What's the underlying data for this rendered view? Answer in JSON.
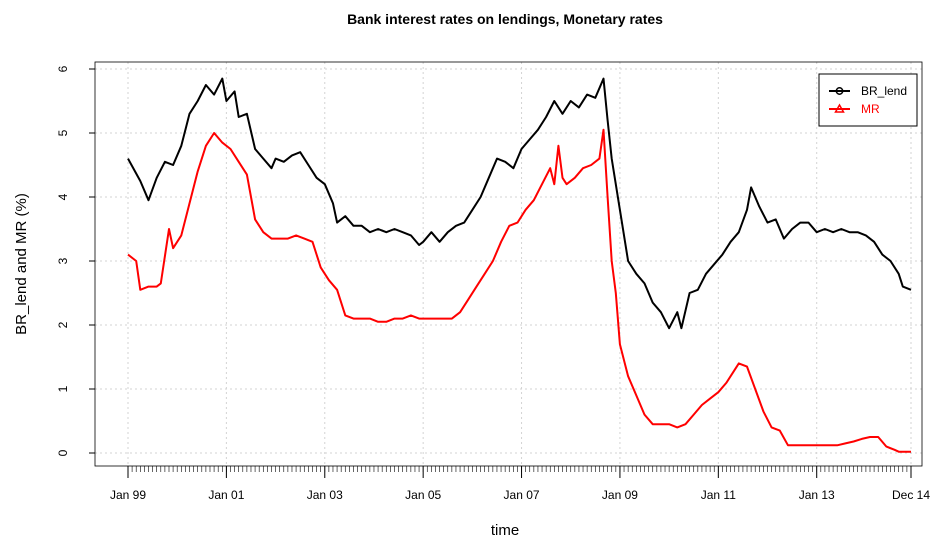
{
  "chart_data": {
    "type": "line",
    "title": "Bank interest rates on lendings, Monetary rates",
    "xlabel": "time",
    "ylabel": "BR_lend and MR (%)",
    "xlim": [
      "1999-01",
      "2014-12"
    ],
    "ylim": [
      0,
      6
    ],
    "yticks": [
      0,
      1,
      2,
      3,
      4,
      5,
      6
    ],
    "x_tick_labels": [
      "Jan 99",
      "Jan 01",
      "Jan 03",
      "Jan 05",
      "Jan 07",
      "Jan 09",
      "Jan 11",
      "Jan 13",
      "Dec 14"
    ],
    "x_tick_dates": [
      "1999-01",
      "2001-01",
      "2003-01",
      "2005-01",
      "2007-01",
      "2009-01",
      "2011-01",
      "2013-01",
      "2014-12"
    ],
    "minor_ticks": "monthly",
    "grid": true,
    "legend_position": "top-right",
    "series": [
      {
        "name": "BR_lend",
        "color": "#000000",
        "marker": "circle",
        "points": [
          [
            "1999-01",
            4.6
          ],
          [
            "1999-04",
            4.25
          ],
          [
            "1999-06",
            3.95
          ],
          [
            "1999-08",
            4.3
          ],
          [
            "1999-10",
            4.55
          ],
          [
            "1999-12",
            4.5
          ],
          [
            "2000-02",
            4.8
          ],
          [
            "2000-04",
            5.3
          ],
          [
            "2000-06",
            5.5
          ],
          [
            "2000-08",
            5.75
          ],
          [
            "2000-10",
            5.6
          ],
          [
            "2000-12",
            5.85
          ],
          [
            "2001-01",
            5.5
          ],
          [
            "2001-03",
            5.65
          ],
          [
            "2001-04",
            5.25
          ],
          [
            "2001-06",
            5.3
          ],
          [
            "2001-08",
            4.75
          ],
          [
            "2001-10",
            4.6
          ],
          [
            "2001-12",
            4.45
          ],
          [
            "2002-01",
            4.6
          ],
          [
            "2002-03",
            4.55
          ],
          [
            "2002-05",
            4.65
          ],
          [
            "2002-07",
            4.7
          ],
          [
            "2002-09",
            4.5
          ],
          [
            "2002-11",
            4.3
          ],
          [
            "2003-01",
            4.2
          ],
          [
            "2003-03",
            3.9
          ],
          [
            "2003-04",
            3.6
          ],
          [
            "2003-06",
            3.7
          ],
          [
            "2003-08",
            3.55
          ],
          [
            "2003-10",
            3.55
          ],
          [
            "2003-12",
            3.45
          ],
          [
            "2004-02",
            3.5
          ],
          [
            "2004-04",
            3.45
          ],
          [
            "2004-06",
            3.5
          ],
          [
            "2004-08",
            3.45
          ],
          [
            "2004-10",
            3.4
          ],
          [
            "2004-12",
            3.25
          ],
          [
            "2005-01",
            3.3
          ],
          [
            "2005-03",
            3.45
          ],
          [
            "2005-05",
            3.3
          ],
          [
            "2005-07",
            3.45
          ],
          [
            "2005-09",
            3.55
          ],
          [
            "2005-11",
            3.6
          ],
          [
            "2006-01",
            3.8
          ],
          [
            "2006-03",
            4.0
          ],
          [
            "2006-05",
            4.3
          ],
          [
            "2006-07",
            4.6
          ],
          [
            "2006-09",
            4.55
          ],
          [
            "2006-11",
            4.45
          ],
          [
            "2007-01",
            4.75
          ],
          [
            "2007-03",
            4.9
          ],
          [
            "2007-05",
            5.05
          ],
          [
            "2007-07",
            5.25
          ],
          [
            "2007-09",
            5.5
          ],
          [
            "2007-11",
            5.3
          ],
          [
            "2008-01",
            5.5
          ],
          [
            "2008-03",
            5.4
          ],
          [
            "2008-05",
            5.6
          ],
          [
            "2008-07",
            5.55
          ],
          [
            "2008-09",
            5.85
          ],
          [
            "2008-10",
            5.2
          ],
          [
            "2008-11",
            4.6
          ],
          [
            "2009-01",
            3.8
          ],
          [
            "2009-03",
            3.0
          ],
          [
            "2009-05",
            2.8
          ],
          [
            "2009-07",
            2.65
          ],
          [
            "2009-09",
            2.35
          ],
          [
            "2009-11",
            2.2
          ],
          [
            "2010-01",
            1.95
          ],
          [
            "2010-03",
            2.2
          ],
          [
            "2010-04",
            1.95
          ],
          [
            "2010-06",
            2.5
          ],
          [
            "2010-08",
            2.55
          ],
          [
            "2010-10",
            2.8
          ],
          [
            "2010-12",
            2.95
          ],
          [
            "2011-02",
            3.1
          ],
          [
            "2011-04",
            3.3
          ],
          [
            "2011-06",
            3.45
          ],
          [
            "2011-08",
            3.8
          ],
          [
            "2011-09",
            4.15
          ],
          [
            "2011-11",
            3.85
          ],
          [
            "2012-01",
            3.6
          ],
          [
            "2012-03",
            3.65
          ],
          [
            "2012-05",
            3.35
          ],
          [
            "2012-07",
            3.5
          ],
          [
            "2012-09",
            3.6
          ],
          [
            "2012-11",
            3.6
          ],
          [
            "2013-01",
            3.45
          ],
          [
            "2013-03",
            3.5
          ],
          [
            "2013-05",
            3.45
          ],
          [
            "2013-07",
            3.5
          ],
          [
            "2013-09",
            3.45
          ],
          [
            "2013-11",
            3.45
          ],
          [
            "2014-01",
            3.4
          ],
          [
            "2014-03",
            3.3
          ],
          [
            "2014-05",
            3.1
          ],
          [
            "2014-07",
            3.0
          ],
          [
            "2014-09",
            2.8
          ],
          [
            "2014-10",
            2.6
          ],
          [
            "2014-12",
            2.55
          ]
        ]
      },
      {
        "name": "MR",
        "color": "#ff0000",
        "marker": "triangle",
        "points": [
          [
            "1999-01",
            3.1
          ],
          [
            "1999-03",
            3.0
          ],
          [
            "1999-04",
            2.55
          ],
          [
            "1999-06",
            2.6
          ],
          [
            "1999-08",
            2.6
          ],
          [
            "1999-09",
            2.65
          ],
          [
            "1999-11",
            3.5
          ],
          [
            "1999-12",
            3.2
          ],
          [
            "2000-02",
            3.4
          ],
          [
            "2000-04",
            3.9
          ],
          [
            "2000-06",
            4.4
          ],
          [
            "2000-08",
            4.8
          ],
          [
            "2000-10",
            5.0
          ],
          [
            "2000-12",
            4.85
          ],
          [
            "2001-02",
            4.75
          ],
          [
            "2001-04",
            4.55
          ],
          [
            "2001-06",
            4.35
          ],
          [
            "2001-08",
            3.65
          ],
          [
            "2001-10",
            3.45
          ],
          [
            "2001-12",
            3.35
          ],
          [
            "2002-02",
            3.35
          ],
          [
            "2002-04",
            3.35
          ],
          [
            "2002-06",
            3.4
          ],
          [
            "2002-08",
            3.35
          ],
          [
            "2002-10",
            3.3
          ],
          [
            "2002-12",
            2.9
          ],
          [
            "2003-02",
            2.7
          ],
          [
            "2003-04",
            2.55
          ],
          [
            "2003-06",
            2.15
          ],
          [
            "2003-08",
            2.1
          ],
          [
            "2003-10",
            2.1
          ],
          [
            "2003-12",
            2.1
          ],
          [
            "2004-02",
            2.05
          ],
          [
            "2004-04",
            2.05
          ],
          [
            "2004-06",
            2.1
          ],
          [
            "2004-08",
            2.1
          ],
          [
            "2004-10",
            2.15
          ],
          [
            "2004-12",
            2.1
          ],
          [
            "2005-02",
            2.1
          ],
          [
            "2005-04",
            2.1
          ],
          [
            "2005-06",
            2.1
          ],
          [
            "2005-08",
            2.1
          ],
          [
            "2005-10",
            2.2
          ],
          [
            "2005-12",
            2.4
          ],
          [
            "2006-02",
            2.6
          ],
          [
            "2006-04",
            2.8
          ],
          [
            "2006-06",
            3.0
          ],
          [
            "2006-08",
            3.3
          ],
          [
            "2006-10",
            3.55
          ],
          [
            "2006-12",
            3.6
          ],
          [
            "2007-02",
            3.8
          ],
          [
            "2007-04",
            3.95
          ],
          [
            "2007-06",
            4.2
          ],
          [
            "2007-08",
            4.45
          ],
          [
            "2007-09",
            4.2
          ],
          [
            "2007-10",
            4.8
          ],
          [
            "2007-11",
            4.3
          ],
          [
            "2007-12",
            4.2
          ],
          [
            "2008-02",
            4.3
          ],
          [
            "2008-04",
            4.45
          ],
          [
            "2008-06",
            4.5
          ],
          [
            "2008-08",
            4.6
          ],
          [
            "2008-09",
            5.05
          ],
          [
            "2008-10",
            4.0
          ],
          [
            "2008-11",
            3.0
          ],
          [
            "2008-12",
            2.5
          ],
          [
            "2009-01",
            1.7
          ],
          [
            "2009-03",
            1.2
          ],
          [
            "2009-05",
            0.9
          ],
          [
            "2009-07",
            0.6
          ],
          [
            "2009-09",
            0.45
          ],
          [
            "2009-11",
            0.45
          ],
          [
            "2010-01",
            0.45
          ],
          [
            "2010-03",
            0.4
          ],
          [
            "2010-05",
            0.45
          ],
          [
            "2010-07",
            0.6
          ],
          [
            "2010-09",
            0.75
          ],
          [
            "2010-11",
            0.85
          ],
          [
            "2011-01",
            0.95
          ],
          [
            "2011-03",
            1.1
          ],
          [
            "2011-05",
            1.3
          ],
          [
            "2011-06",
            1.4
          ],
          [
            "2011-08",
            1.35
          ],
          [
            "2011-10",
            1.0
          ],
          [
            "2011-12",
            0.65
          ],
          [
            "2012-02",
            0.4
          ],
          [
            "2012-04",
            0.35
          ],
          [
            "2012-06",
            0.12
          ],
          [
            "2012-08",
            0.12
          ],
          [
            "2012-10",
            0.12
          ],
          [
            "2012-12",
            0.12
          ],
          [
            "2013-02",
            0.12
          ],
          [
            "2013-04",
            0.12
          ],
          [
            "2013-06",
            0.12
          ],
          [
            "2013-08",
            0.15
          ],
          [
            "2013-10",
            0.18
          ],
          [
            "2013-12",
            0.22
          ],
          [
            "2014-02",
            0.25
          ],
          [
            "2014-04",
            0.25
          ],
          [
            "2014-06",
            0.1
          ],
          [
            "2014-08",
            0.05
          ],
          [
            "2014-09",
            0.02
          ],
          [
            "2014-12",
            0.02
          ]
        ]
      }
    ]
  }
}
